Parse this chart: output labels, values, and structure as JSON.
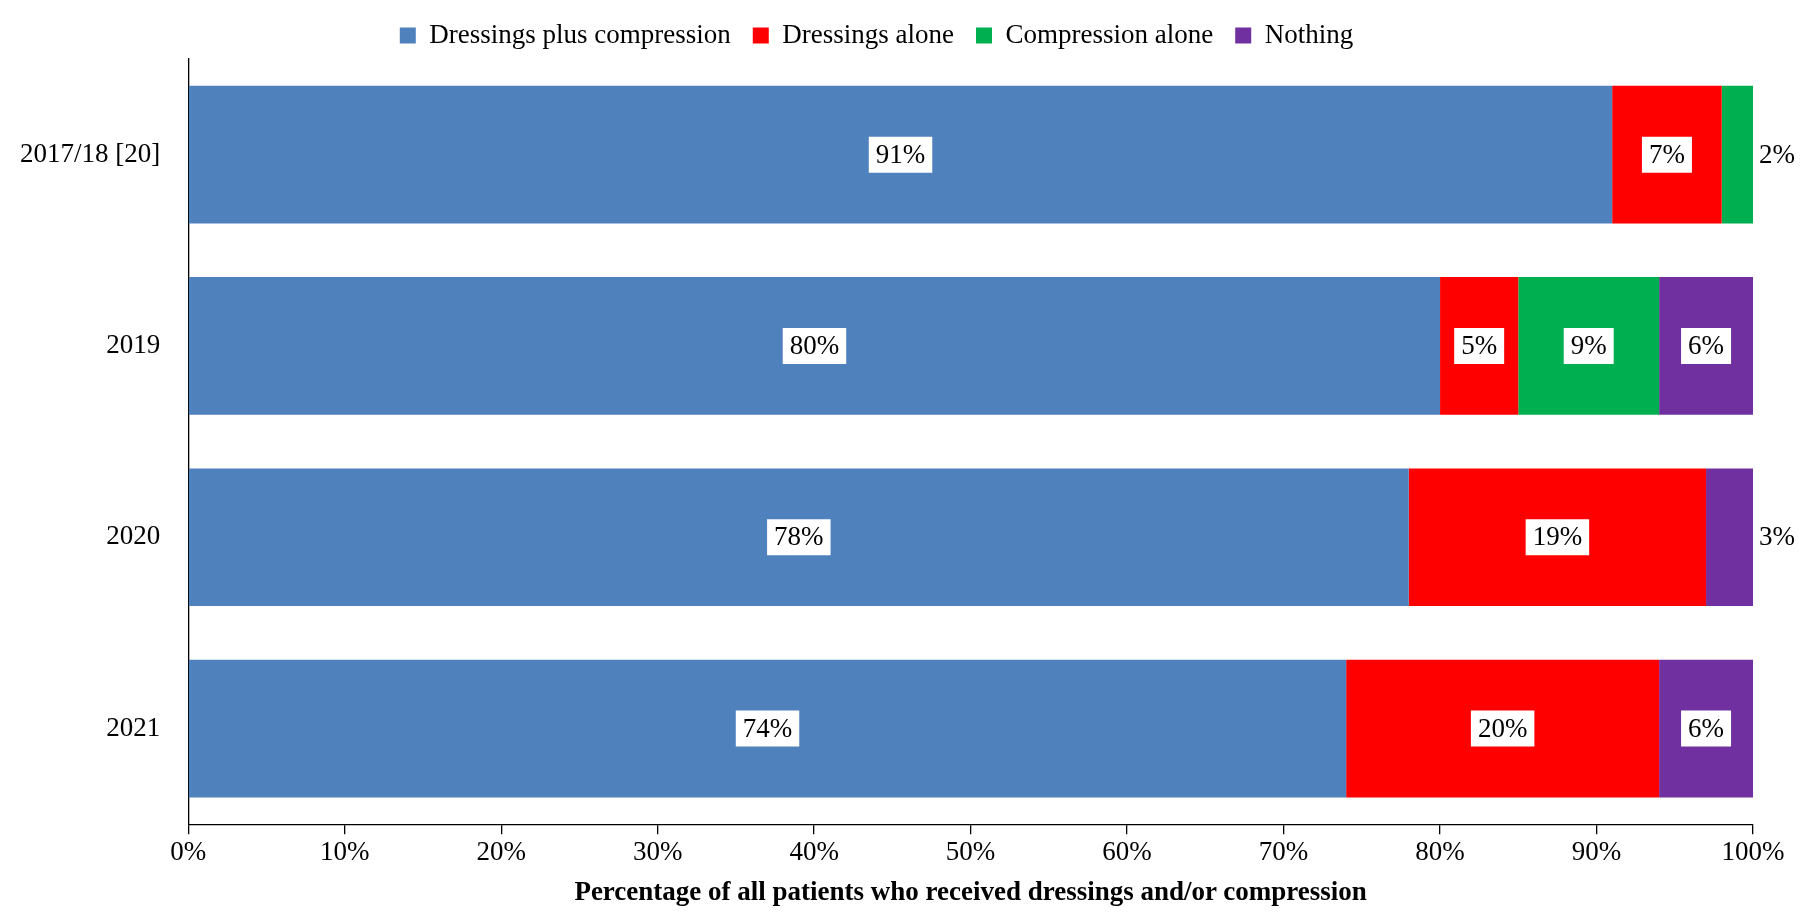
{
  "chart_data": {
    "type": "bar",
    "orientation": "horizontal",
    "stacked": true,
    "xlabel": "Percentage of all patients who received dressings and/or compression",
    "categories": [
      "2017/18 [20]",
      "2019",
      "2020",
      "2021"
    ],
    "series": [
      {
        "name": "Dressings plus compression",
        "color": "#4f81bd",
        "values": [
          91,
          80,
          78,
          74
        ],
        "value_labels": [
          "91%",
          "80%",
          "78%",
          "74%"
        ]
      },
      {
        "name": "Dressings alone",
        "color": "#ff0000",
        "values": [
          7,
          5,
          19,
          20
        ],
        "value_labels": [
          "7%",
          "5%",
          "19%",
          "20%"
        ]
      },
      {
        "name": "Compression alone",
        "color": "#00b050",
        "values": [
          2,
          9,
          0,
          0
        ],
        "value_labels": [
          "2%",
          "9%",
          null,
          null
        ]
      },
      {
        "name": "Nothing",
        "color": "#7030a0",
        "values": [
          0,
          6,
          3,
          6
        ],
        "value_labels": [
          null,
          "6%",
          "3%",
          "6%"
        ]
      }
    ],
    "xlim": [
      0,
      100
    ],
    "xticks": [
      {
        "value": 0,
        "label": "0%"
      },
      {
        "value": 10,
        "label": "10%"
      },
      {
        "value": 20,
        "label": "20%"
      },
      {
        "value": 30,
        "label": "30%"
      },
      {
        "value": 40,
        "label": "40%"
      },
      {
        "value": 50,
        "label": "50%"
      },
      {
        "value": 60,
        "label": "60%"
      },
      {
        "value": 70,
        "label": "70%"
      },
      {
        "value": 80,
        "label": "80%"
      },
      {
        "value": 90,
        "label": "90%"
      },
      {
        "value": 100,
        "label": "100%"
      }
    ],
    "grid": false,
    "legend": "top"
  }
}
